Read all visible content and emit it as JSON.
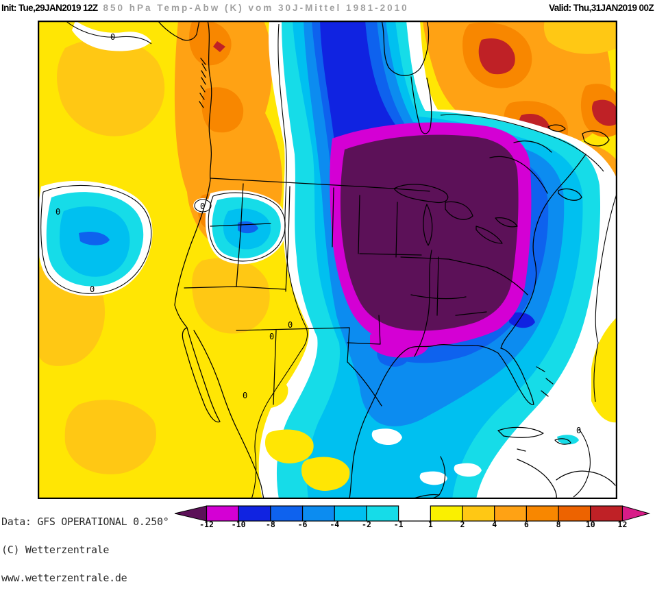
{
  "title": {
    "init_label": "Init: Tue,29JAN2019 12Z",
    "subject": "850 hPa Temp-Abw (K) vom 30J-Mittel 1981-2010",
    "valid_label": "Valid: Thu,31JAN2019 00Z"
  },
  "credits": {
    "line1": "Data: GFS OPERATIONAL 0.250°",
    "line2": "(C) Wetterzentrale",
    "line3": "www.wetterzentrale.de"
  },
  "map": {
    "region": "North America",
    "contour_label": "0",
    "palette": {
      "below_-12": "#5C1158",
      "-12_-10": "#D400D4",
      "-10_-8": "#1023E1",
      "-8_-6": "#0E62EE",
      "-6_-4": "#0C8CF0",
      "-4_-2": "#00C0F0",
      "-2_-1": "#16DCE8",
      "-1_1": "#FFFFFF",
      "1_2": "#FAF000",
      "2_4": "#FFC814",
      "4_6": "#FFA214",
      "6_8": "#F88700",
      "8_10": "#ED6300",
      "10_12": "#BF2126",
      "above_12": "#D81C87"
    }
  },
  "legend": {
    "unit": "K",
    "tick_labels": [
      "-12",
      "-10",
      "-8",
      "-6",
      "-4",
      "-2",
      "-1",
      "1",
      "2",
      "4",
      "6",
      "8",
      "10",
      "12"
    ],
    "block_colors": [
      "#D400D4",
      "#1023E1",
      "#0E62EE",
      "#0C8CF0",
      "#00C0F0",
      "#16DCE8",
      "#FFFFFF",
      "#FAF000",
      "#FFC814",
      "#FFA214",
      "#F88700",
      "#ED6300",
      "#BF2126"
    ],
    "arrow_left_color": "#5C1158",
    "arrow_right_color": "#D81C87"
  }
}
